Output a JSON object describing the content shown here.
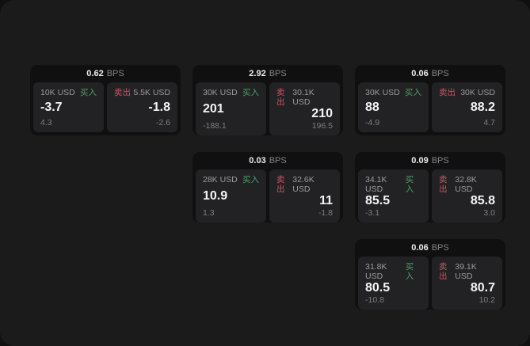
{
  "labels": {
    "bps_unit": "BPS",
    "buy": "买入",
    "sell": "卖出"
  },
  "colors": {
    "buy_accent": "#49a066",
    "sell_accent": "#cf5266",
    "panel_background": "#1b1b1c",
    "card_background": "#101011",
    "tile_background": "#222224"
  },
  "cards": [
    {
      "bps": "0.62",
      "col": 0,
      "row": 0,
      "buy": {
        "amount": "10K USD",
        "main": "-3.7",
        "sub": "4.3"
      },
      "sell": {
        "amount": "5.5K USD",
        "main": "-1.8",
        "sub": "-2.6"
      }
    },
    {
      "bps": "2.92",
      "col": 1,
      "row": 0,
      "buy": {
        "amount": "30K USD",
        "main": "201",
        "sub": "-188.1"
      },
      "sell": {
        "amount": "30.1K USD",
        "main": "210",
        "sub": "196.5"
      }
    },
    {
      "bps": "0.06",
      "col": 2,
      "row": 0,
      "buy": {
        "amount": "30K USD",
        "main": "88",
        "sub": "-4.9"
      },
      "sell": {
        "amount": "30K USD",
        "main": "88.2",
        "sub": "4.7"
      }
    },
    {
      "bps": "0.03",
      "col": 1,
      "row": 1,
      "buy": {
        "amount": "28K USD",
        "main": "10.9",
        "sub": "1.3"
      },
      "sell": {
        "amount": "32.6K USD",
        "main": "11",
        "sub": "-1.8"
      }
    },
    {
      "bps": "0.09",
      "col": 2,
      "row": 1,
      "buy": {
        "amount": "34.1K USD",
        "main": "85.5",
        "sub": "-3.1"
      },
      "sell": {
        "amount": "32.8K USD",
        "main": "85.8",
        "sub": "3.0"
      }
    },
    {
      "bps": "0.06",
      "col": 2,
      "row": 2,
      "buy": {
        "amount": "31.8K USD",
        "main": "80.5",
        "sub": "-10.8"
      },
      "sell": {
        "amount": "39.1K USD",
        "main": "80.7",
        "sub": "10.2"
      }
    }
  ]
}
